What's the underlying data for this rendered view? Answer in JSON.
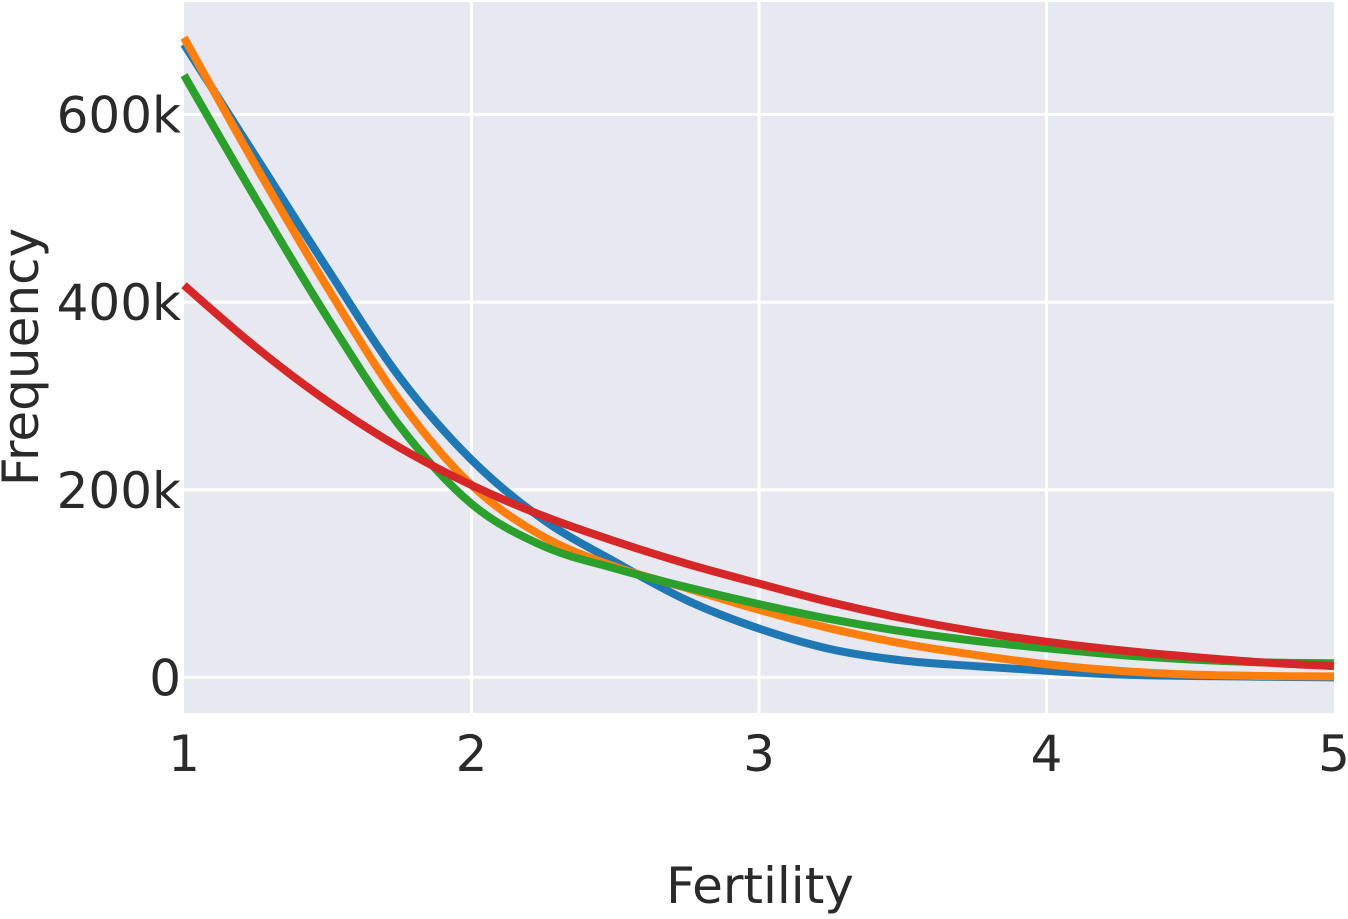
{
  "chart_data": {
    "type": "line",
    "title": "",
    "xlabel": "Fertility",
    "ylabel": "Frequency",
    "xlim": [
      1,
      5
    ],
    "ylim": [
      -38000,
      720000
    ],
    "grid": true,
    "background_color": "#e8e8f0",
    "x_ticks": [
      {
        "value": 1,
        "label": "1"
      },
      {
        "value": 2,
        "label": "2"
      },
      {
        "value": 3,
        "label": "3"
      },
      {
        "value": 4,
        "label": "4"
      },
      {
        "value": 5,
        "label": "5"
      }
    ],
    "y_ticks": [
      {
        "value": 0,
        "label": "0"
      },
      {
        "value": 200000,
        "label": "200k"
      },
      {
        "value": 400000,
        "label": "400k"
      },
      {
        "value": 600000,
        "label": "600k"
      }
    ],
    "x": [
      1,
      1.25,
      1.5,
      1.75,
      2,
      2.25,
      2.5,
      2.75,
      3,
      3.25,
      3.5,
      3.75,
      4,
      4.25,
      4.5,
      4.75,
      5
    ],
    "series": [
      {
        "name": "blue",
        "color": "#1f77b4",
        "values": [
          675000,
          555000,
          435000,
          320000,
          232000,
          168000,
          123000,
          82000,
          52000,
          30000,
          18000,
          12000,
          7000,
          3000,
          1500,
          700,
          0
        ]
      },
      {
        "name": "orange",
        "color": "#ff7f0e",
        "values": [
          682000,
          545000,
          415000,
          295000,
          205000,
          150000,
          118000,
          95000,
          72000,
          52000,
          36000,
          24000,
          14000,
          7000,
          3000,
          1500,
          1000
        ]
      },
      {
        "name": "green",
        "color": "#2ca02c",
        "values": [
          642000,
          510000,
          383000,
          268000,
          185000,
          140000,
          116000,
          96000,
          78000,
          62000,
          49000,
          39000,
          31000,
          24000,
          19000,
          16000,
          15000
        ]
      },
      {
        "name": "red",
        "color": "#d62728",
        "values": [
          418000,
          352000,
          294000,
          245000,
          205000,
          172000,
          145000,
          121000,
          100000,
          80000,
          63000,
          49000,
          38000,
          29000,
          22000,
          16000,
          12000
        ]
      }
    ]
  }
}
